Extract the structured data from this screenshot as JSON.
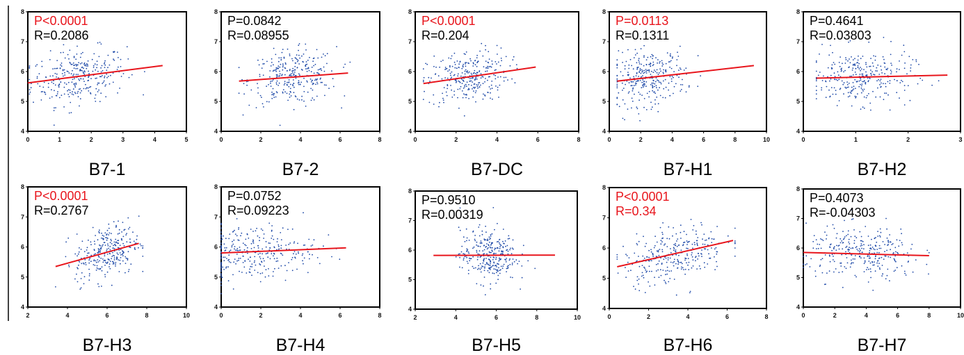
{
  "colors": {
    "points": "#1f4aa8",
    "fit_line": "#e8151c",
    "significant_text": "#e8151c",
    "text": "#000000",
    "frame": "#000000"
  },
  "chart_data": [
    {
      "type": "scatter",
      "title": "B7-1",
      "xlim": [
        0,
        5
      ],
      "ylim": [
        4,
        8
      ],
      "xticks": [
        "0",
        "1",
        "2",
        "3",
        "4",
        "5"
      ],
      "yticks": [
        "4",
        "5",
        "6",
        "7",
        "8"
      ],
      "p_label": "P<0.0001",
      "r_label": "R=0.2086",
      "significant": true,
      "fit": [
        [
          0,
          5.62
        ],
        [
          4.25,
          6.2
        ]
      ],
      "points": {
        "n": 300,
        "x_mean": 1.6,
        "x_sd": 0.75,
        "x_min": 0.05,
        "x_max": 4.3
      }
    },
    {
      "type": "scatter",
      "title": "B7-2",
      "xlim": [
        0,
        8
      ],
      "ylim": [
        4,
        8
      ],
      "xticks": [
        "0",
        "2",
        "4",
        "6",
        "8"
      ],
      "yticks": [
        "4",
        "5",
        "6",
        "7",
        "8"
      ],
      "p_label": "P=0.0842",
      "r_label": "R=0.08955",
      "significant": false,
      "fit": [
        [
          0.9,
          5.68
        ],
        [
          6.4,
          5.95
        ]
      ],
      "points": {
        "n": 300,
        "x_mean": 3.6,
        "x_sd": 1.1,
        "x_min": 0.9,
        "x_max": 6.5
      }
    },
    {
      "type": "scatter",
      "title": "B7-DC",
      "xlim": [
        0,
        8
      ],
      "ylim": [
        4,
        8
      ],
      "xticks": [
        "0",
        "2",
        "4",
        "6",
        "8"
      ],
      "yticks": [
        "4",
        "5",
        "6",
        "7",
        "8"
      ],
      "p_label": "P<0.0001",
      "r_label": "R=0.204",
      "significant": true,
      "fit": [
        [
          0.4,
          5.6
        ],
        [
          5.9,
          6.15
        ]
      ],
      "points": {
        "n": 300,
        "x_mean": 2.6,
        "x_sd": 1.0,
        "x_min": 0.4,
        "x_max": 5.9
      }
    },
    {
      "type": "scatter",
      "title": "B7-H1",
      "xlim": [
        0,
        10
      ],
      "ylim": [
        4,
        8
      ],
      "xticks": [
        "0",
        "2",
        "4",
        "6",
        "8",
        "10"
      ],
      "yticks": [
        "4",
        "5",
        "6",
        "7",
        "8"
      ],
      "p_label": "P=0.0113",
      "r_label": "R=0.1311",
      "significant": true,
      "fit": [
        [
          0.5,
          5.68
        ],
        [
          9.2,
          6.2
        ]
      ],
      "points": {
        "n": 300,
        "x_mean": 2.5,
        "x_sd": 1.2,
        "x_min": 0.5,
        "x_max": 9.2
      }
    },
    {
      "type": "scatter",
      "title": "B7-H2",
      "xlim": [
        0,
        3
      ],
      "ylim": [
        4,
        8
      ],
      "xticks": [
        "0",
        "1",
        "2",
        "3"
      ],
      "yticks": [
        "4",
        "5",
        "6",
        "7",
        "8"
      ],
      "p_label": "P=0.4641",
      "r_label": "R=0.03803",
      "significant": false,
      "fit": [
        [
          0.25,
          5.78
        ],
        [
          2.75,
          5.88
        ]
      ],
      "points": {
        "n": 300,
        "x_mean": 1.1,
        "x_sd": 0.5,
        "x_min": 0.25,
        "x_max": 2.75
      }
    },
    {
      "type": "scatter",
      "title": "B7-H3",
      "xlim": [
        2,
        10
      ],
      "ylim": [
        4,
        8
      ],
      "xticks": [
        "2",
        "4",
        "6",
        "8",
        "10"
      ],
      "yticks": [
        "4",
        "5",
        "6",
        "7",
        "8"
      ],
      "p_label": "P<0.0001",
      "r_label": "R=0.2767",
      "significant": true,
      "fit": [
        [
          3.4,
          5.35
        ],
        [
          7.6,
          6.12
        ]
      ],
      "points": {
        "n": 300,
        "x_mean": 6.0,
        "x_sd": 0.8,
        "x_min": 3.4,
        "x_max": 7.8
      }
    },
    {
      "type": "scatter",
      "title": "B7-H4",
      "xlim": [
        0,
        8
      ],
      "ylim": [
        4,
        8
      ],
      "xticks": [
        "0",
        "2",
        "4",
        "6",
        "8"
      ],
      "yticks": [
        "4",
        "5",
        "6",
        "7",
        "8"
      ],
      "p_label": "P=0.0752",
      "r_label": "R=0.09223",
      "significant": false,
      "fit": [
        [
          0,
          5.8
        ],
        [
          6.3,
          5.97
        ]
      ],
      "points": {
        "n": 300,
        "x_mean": 1.6,
        "x_sd": 1.6,
        "x_min": 0.0,
        "x_max": 6.3
      }
    },
    {
      "type": "scatter",
      "title": "B7-H5",
      "xlim": [
        2,
        10
      ],
      "ylim": [
        4,
        8
      ],
      "xticks": [
        "2",
        "4",
        "6",
        "8",
        "10"
      ],
      "yticks": [
        "4",
        "5",
        "6",
        "7",
        "8"
      ],
      "p_label": "P=0.9510",
      "r_label": "R=0.00319",
      "significant": false,
      "fit": [
        [
          2.9,
          5.82
        ],
        [
          8.9,
          5.83
        ]
      ],
      "points": {
        "n": 300,
        "x_mean": 5.6,
        "x_sd": 0.7,
        "x_min": 3.4,
        "x_max": 8.9
      }
    },
    {
      "type": "scatter",
      "title": "B7-H6",
      "xlim": [
        0,
        8
      ],
      "ylim": [
        4,
        8
      ],
      "xticks": [
        "0",
        "2",
        "4",
        "6",
        "8"
      ],
      "yticks": [
        "4",
        "5",
        "6",
        "7",
        "8"
      ],
      "p_label": "P<0.0001",
      "r_label": "R=0.34",
      "significant": true,
      "fit": [
        [
          0.4,
          5.38
        ],
        [
          6.3,
          6.25
        ]
      ],
      "points": {
        "n": 300,
        "x_mean": 3.3,
        "x_sd": 1.3,
        "x_min": 0.4,
        "x_max": 6.4
      }
    },
    {
      "type": "scatter",
      "title": "B7-H7",
      "xlim": [
        0,
        10
      ],
      "ylim": [
        4,
        8
      ],
      "xticks": [
        "0",
        "2",
        "4",
        "6",
        "8",
        "10"
      ],
      "yticks": [
        "4",
        "5",
        "6",
        "7",
        "8"
      ],
      "p_label": "P=0.4073",
      "r_label": "R=-0.04303",
      "significant": false,
      "fit": [
        [
          0,
          5.85
        ],
        [
          8.0,
          5.74
        ]
      ],
      "points": {
        "n": 300,
        "x_mean": 3.8,
        "x_sd": 1.8,
        "x_min": 0.0,
        "x_max": 8.0
      }
    }
  ]
}
